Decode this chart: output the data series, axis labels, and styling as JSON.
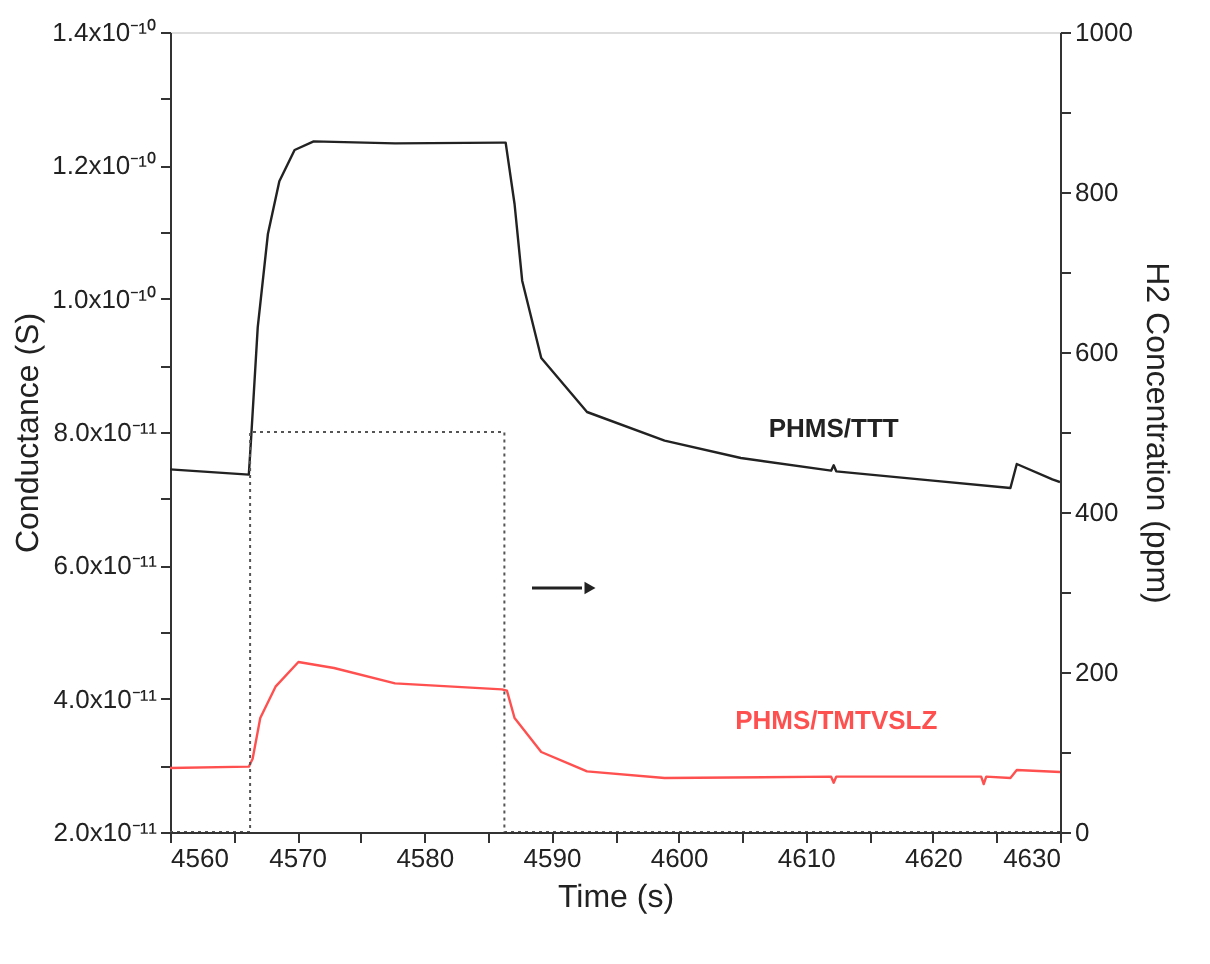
{
  "chart_data": {
    "type": "line",
    "xlabel": "Time (s)",
    "ylabel": "Conductance (S)",
    "y2label": "H2 Concentration (ppm)",
    "series": [
      {
        "name": "PHMS/TTT",
        "color": "#222222",
        "x": [
          4560,
          4566.2,
          4566.4,
          4566.9,
          4567.7,
          4568.6,
          4569.8,
          4571.3,
          4577.7,
          4586.1,
          4586.4,
          4587.1,
          4587.7,
          4589.2,
          4592.8,
          4598.9,
          4604.9,
          4612.0,
          4612.2,
          4612.4,
          4620.0,
          4626.1,
          4626.6,
          4629.4,
          4630
        ],
        "values": [
          7.44e-11,
          7.36e-11,
          7.97e-11,
          9.57e-11,
          1.097e-10,
          1.176e-10,
          1.223e-10,
          1.236e-10,
          1.233e-10,
          1.234e-10,
          1.234e-10,
          1.142e-10,
          1.027e-10,
          9.11e-11,
          8.3e-11,
          7.87e-11,
          7.61e-11,
          7.42e-11,
          7.5e-11,
          7.41e-11,
          7.27e-11,
          7.16e-11,
          7.52e-11,
          7.29e-11,
          7.25e-11
        ]
      },
      {
        "name": "PHMS/TMTVSLZ",
        "color": "#ff5050",
        "x": [
          4560,
          4566.2,
          4566.5,
          4567.1,
          4568.3,
          4570.1,
          4572.9,
          4577.7,
          4586.1,
          4586.5,
          4587.1,
          4589.2,
          4592.8,
          4598.9,
          4612.0,
          4612.2,
          4612.4,
          4623.8,
          4624.0,
          4624.2,
          4626.1,
          4626.6,
          4630
        ],
        "values": [
          2.96e-11,
          2.98e-11,
          3.1e-11,
          3.71e-11,
          4.18e-11,
          4.55e-11,
          4.46e-11,
          4.23e-11,
          4.14e-11,
          4.12e-11,
          3.71e-11,
          3.2e-11,
          2.91e-11,
          2.81e-11,
          2.83e-11,
          2.74e-11,
          2.83e-11,
          2.83e-11,
          2.72e-11,
          2.83e-11,
          2.81e-11,
          2.93e-11,
          2.9e-11
        ]
      },
      {
        "color": "#555555",
        "type": "step",
        "axis": "y2",
        "line_style": "dotted",
        "x": [
          4560,
          4566.3,
          4586.3,
          4630
        ],
        "values": [
          0,
          500,
          0,
          0
        ]
      }
    ],
    "xlim": [
      4560,
      4630
    ],
    "xticks": [
      4560,
      {
        "value": 4565,
        "label": null
      },
      4570,
      {
        "value": 4575,
        "label": null
      },
      4580,
      {
        "value": 4585,
        "label": null
      },
      4590,
      {
        "value": 4595,
        "label": null
      },
      4600,
      {
        "value": 4605,
        "label": null
      },
      4610,
      {
        "value": 4615,
        "label": null
      },
      4620,
      {
        "value": 4625,
        "label": null
      },
      4630
    ],
    "ylim": [
      2e-11,
      1.4e-10
    ],
    "yticks": [
      {
        "value": 2e-11,
        "label": "2.0x10⁻¹¹"
      },
      {
        "value": 3e-11,
        "label": null
      },
      {
        "value": 4e-11,
        "label": "4.0x10⁻¹¹"
      },
      {
        "value": 5e-11,
        "label": null
      },
      {
        "value": 6e-11,
        "label": "6.0x10⁻¹¹"
      },
      {
        "value": 7e-11,
        "label": null
      },
      {
        "value": 8e-11,
        "label": "8.0x10⁻¹¹"
      },
      {
        "value": 9e-11,
        "label": null
      },
      {
        "value": 1e-10,
        "label": "1.0x10⁻¹⁰"
      },
      {
        "value": 1.1e-10,
        "label": null
      },
      {
        "value": 1.2e-10,
        "label": "1.2x10⁻¹⁰"
      },
      {
        "value": 1.3e-10,
        "label": null
      },
      {
        "value": 1.4e-10,
        "label": "1.4x10⁻¹⁰"
      }
    ],
    "y2lim": [
      0,
      1000
    ],
    "y2ticks": [
      0,
      {
        "value": 100,
        "label": null
      },
      200,
      {
        "value": 300,
        "label": null
      },
      400,
      {
        "value": 500,
        "label": null
      },
      600,
      {
        "value": 700,
        "label": null
      },
      800,
      {
        "value": 900,
        "label": null
      },
      1000
    ],
    "grid": false
  }
}
